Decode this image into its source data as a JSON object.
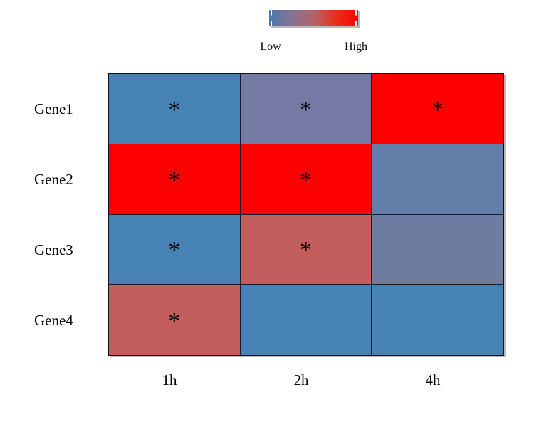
{
  "chart_data": {
    "type": "heatmap",
    "title": "",
    "rows": [
      "Gene1",
      "Gene2",
      "Gene3",
      "Gene4"
    ],
    "columns": [
      "1h",
      "2h",
      "4h"
    ],
    "legend": {
      "low": "Low",
      "high": "High",
      "gradient": [
        "#4C79AE",
        "#867295",
        "#B56468",
        "#E93018",
        "#FE0000"
      ]
    },
    "significance_symbol": "*",
    "palette": {
      "low": "#4682B4",
      "low_mid": "#617FA8",
      "mid": "#6E7CA1",
      "mid_purple": "#747AA3",
      "mid_high": "#C25E5E",
      "high": "#FE0000"
    },
    "cells": [
      [
        {
          "row": "Gene1",
          "col": "1h",
          "level": "low",
          "color": "#4682B4",
          "mark": "*"
        },
        {
          "row": "Gene1",
          "col": "2h",
          "level": "mid",
          "color": "#747AA3",
          "mark": "*"
        },
        {
          "row": "Gene1",
          "col": "4h",
          "level": "high",
          "color": "#FE0000",
          "mark": "*"
        }
      ],
      [
        {
          "row": "Gene2",
          "col": "1h",
          "level": "high",
          "color": "#FE0000",
          "mark": "*"
        },
        {
          "row": "Gene2",
          "col": "2h",
          "level": "high",
          "color": "#FE0000",
          "mark": "*"
        },
        {
          "row": "Gene2",
          "col": "4h",
          "level": "low-mid",
          "color": "#617FA8",
          "mark": ""
        }
      ],
      [
        {
          "row": "Gene3",
          "col": "1h",
          "level": "low",
          "color": "#4682B4",
          "mark": "*"
        },
        {
          "row": "Gene3",
          "col": "2h",
          "level": "mid-high",
          "color": "#C25E5E",
          "mark": "*"
        },
        {
          "row": "Gene3",
          "col": "4h",
          "level": "mid",
          "color": "#6E7CA1",
          "mark": ""
        }
      ],
      [
        {
          "row": "Gene4",
          "col": "1h",
          "level": "mid-high",
          "color": "#C25E5E",
          "mark": "*"
        },
        {
          "row": "Gene4",
          "col": "2h",
          "level": "low",
          "color": "#4682B4",
          "mark": ""
        },
        {
          "row": "Gene4",
          "col": "4h",
          "level": "low",
          "color": "#4682B4",
          "mark": ""
        }
      ]
    ]
  }
}
